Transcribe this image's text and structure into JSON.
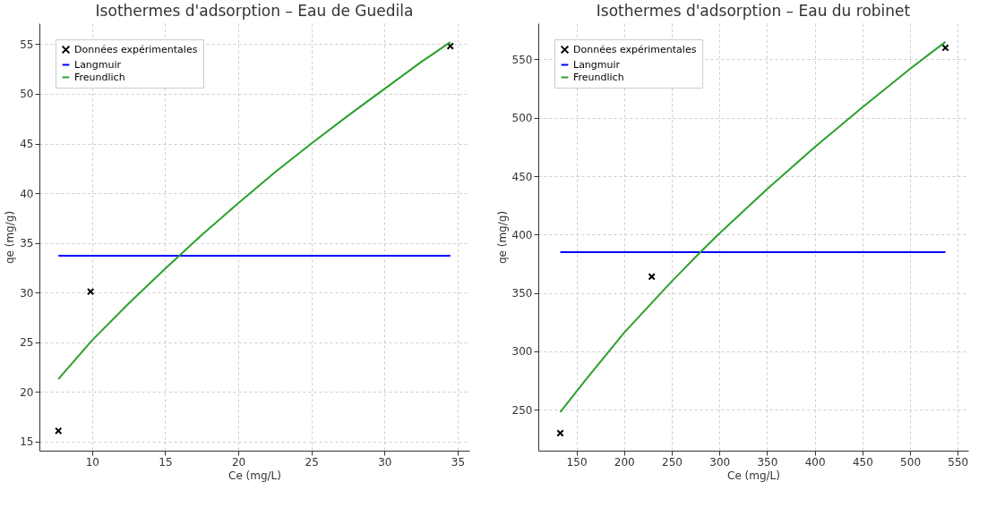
{
  "chart_data": [
    {
      "type": "scatter",
      "title": "Isothermes d'adsorption – Eau de Guedila",
      "xlabel": "Ce (mg/L)",
      "ylabel": "qe (mg/g)",
      "xlim": [
        6.4,
        35.8
      ],
      "xticks": [
        10,
        15,
        20,
        25,
        30,
        35
      ],
      "ylim": [
        14.1,
        57.1
      ],
      "yticks": [
        15,
        20,
        25,
        30,
        35,
        40,
        45,
        50,
        55
      ],
      "grid": true,
      "legend": "top left",
      "series": [
        {
          "name": "Données expérimentales",
          "marker": "cross",
          "color": "#000000",
          "x": [
            7.7,
            9.9,
            34.5
          ],
          "values": [
            16.1,
            30.1,
            54.8
          ]
        },
        {
          "name": "Langmuir",
          "type": "line",
          "color": "#0000ff",
          "x": [
            7.7,
            34.5
          ],
          "values": [
            33.7,
            33.7
          ]
        },
        {
          "name": "Freundlich",
          "type": "line",
          "color": "#2ca02c",
          "x": [
            7.7,
            10,
            12.5,
            15,
            17.5,
            20,
            22.5,
            25,
            27.5,
            30,
            32.5,
            34.5
          ],
          "values": [
            21.3,
            25.2,
            28.9,
            32.4,
            35.8,
            39.0,
            42.1,
            45.0,
            47.8,
            50.5,
            53.2,
            55.2
          ]
        }
      ]
    },
    {
      "type": "scatter",
      "title": "Isothermes d'adsorption – Eau du robinet",
      "xlabel": "Ce (mg/L)",
      "ylabel": "qe (mg/g)",
      "xlim": [
        110,
        561
      ],
      "xticks": [
        150,
        200,
        250,
        300,
        350,
        400,
        450,
        500,
        550
      ],
      "ylim": [
        215,
        581
      ],
      "yticks": [
        250,
        300,
        350,
        400,
        450,
        500,
        550
      ],
      "grid": true,
      "legend": "top left",
      "series": [
        {
          "name": "Données expérimentales",
          "marker": "cross",
          "color": "#000000",
          "x": [
            133,
            229,
            537
          ],
          "values": [
            230,
            364,
            560
          ]
        },
        {
          "name": "Langmuir",
          "type": "line",
          "color": "#0000ff",
          "x": [
            133,
            537
          ],
          "values": [
            385,
            385
          ]
        },
        {
          "name": "Freundlich",
          "type": "line",
          "color": "#2ca02c",
          "x": [
            133,
            160,
            200,
            250,
            280,
            300,
            350,
            400,
            450,
            500,
            537
          ],
          "values": [
            248,
            276,
            316,
            360,
            385,
            401,
            439,
            475,
            509,
            542,
            565
          ]
        }
      ]
    }
  ]
}
